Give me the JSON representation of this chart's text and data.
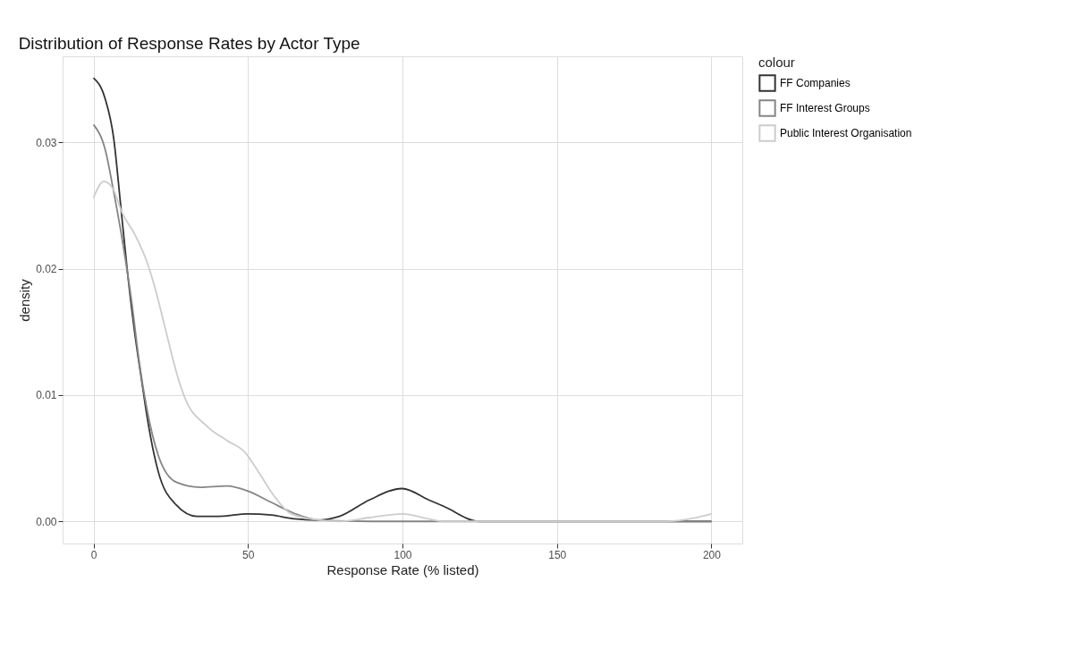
{
  "chart_data": {
    "type": "line",
    "title": "Distribution of Response Rates by Actor Type",
    "xlabel": "Response Rate (% listed)",
    "ylabel": "density",
    "legend_title": "colour",
    "legend": "right",
    "grid": true,
    "line_style": "solid",
    "marker": "none",
    "xlim": [
      -10,
      210
    ],
    "xticks": [
      0,
      50,
      100,
      150,
      200
    ],
    "ylim": [
      -0.00175,
      0.0368
    ],
    "yticks": [
      {
        "value": 0,
        "label": "0.00"
      },
      {
        "value": 0.01,
        "label": "0.01"
      },
      {
        "value": 0.02,
        "label": "0.02"
      },
      {
        "value": 0.03,
        "label": "0.03"
      }
    ],
    "series": [
      {
        "name": "FF Companies",
        "color": "#333333",
        "x": [
          0,
          3.7,
          6.6,
          8.6,
          11,
          13.3,
          15.8,
          17.2,
          21,
          26.8,
          33.5,
          40.6,
          50,
          57.6,
          65,
          72,
          79.6,
          89.3,
          99.9,
          108.5,
          113.3,
          124.9,
          150,
          175,
          200
        ],
        "values": [
          0.0351,
          0.0335,
          0.0302,
          0.0255,
          0.0197,
          0.015,
          0.0108,
          0.0085,
          0.0039,
          0.0013,
          0.0004,
          0.0004,
          0.0006,
          0.0005,
          0.0002,
          0.0001,
          0.0004,
          0.0017,
          0.0026,
          0.0017,
          0.0012,
          0.0,
          0.0,
          0.0,
          0.0
        ]
      },
      {
        "name": "FF Interest Groups",
        "color": "#858585",
        "x": [
          0,
          3.7,
          6.6,
          9.5,
          12.4,
          14.8,
          17.2,
          21,
          26.8,
          34.5,
          43.2,
          50,
          57.6,
          65.3,
          73,
          90,
          125,
          150,
          200
        ],
        "values": [
          0.0314,
          0.0295,
          0.026,
          0.022,
          0.0173,
          0.0126,
          0.009,
          0.0052,
          0.0031,
          0.0027,
          0.0028,
          0.0024,
          0.0015,
          0.0006,
          0.0001,
          0.0,
          0.0,
          0.0,
          0.0
        ]
      },
      {
        "name": "Public Interest Organisation",
        "color": "#cccccc",
        "x": [
          0,
          3.3,
          6.1,
          9.5,
          13.4,
          17.2,
          20.1,
          23,
          27.8,
          29.7,
          36.4,
          43.2,
          48.9,
          53.7,
          58.5,
          63.3,
          70,
          79.6,
          89.3,
          99.9,
          108.5,
          113.3,
          150,
          185,
          195,
          200
        ],
        "values": [
          0.0256,
          0.0269,
          0.0264,
          0.0243,
          0.0227,
          0.0206,
          0.0183,
          0.0155,
          0.011,
          0.0097,
          0.0076,
          0.0064,
          0.0055,
          0.0038,
          0.002,
          0.0007,
          0.0002,
          0.0,
          0.0003,
          0.0006,
          0.0002,
          0.0,
          0.0,
          0.0,
          0.0003,
          0.0006
        ]
      }
    ]
  }
}
